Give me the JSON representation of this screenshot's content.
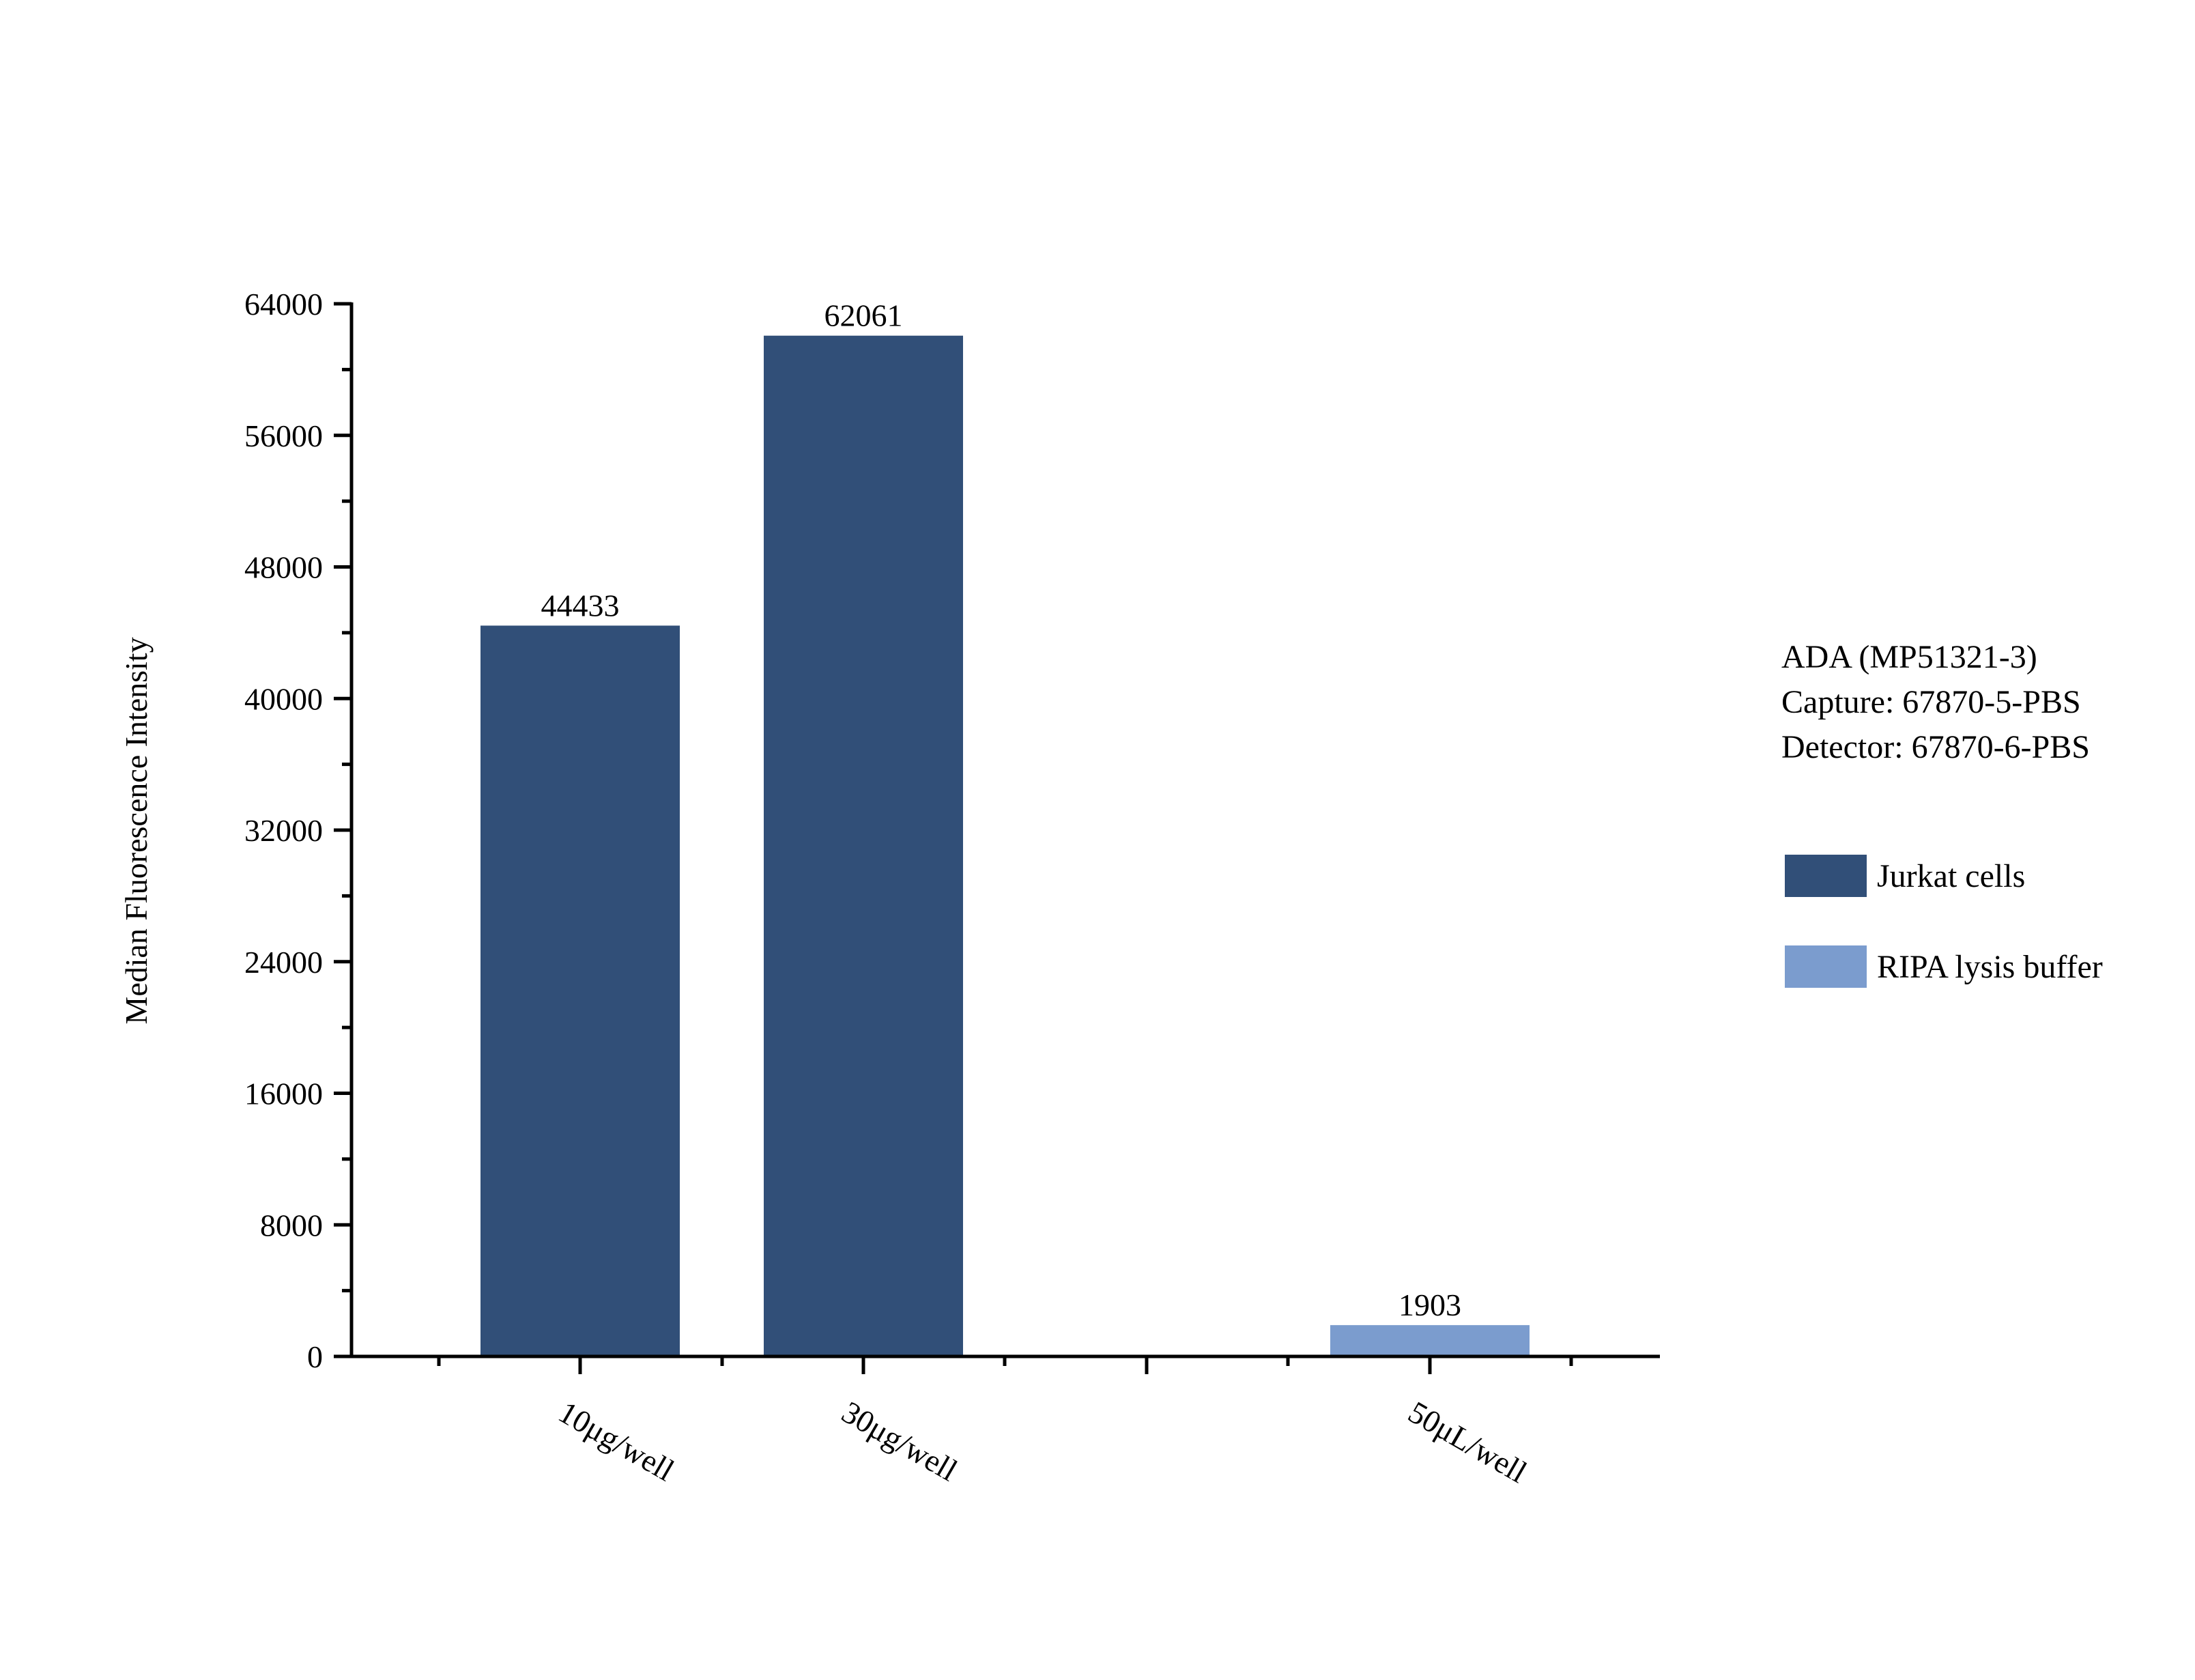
{
  "chart_data": {
    "type": "bar",
    "title": "",
    "xlabel": "",
    "ylabel": "Median Fluorescence Intensity",
    "ylim": [
      0,
      64000
    ],
    "yticks": [
      0,
      8000,
      16000,
      24000,
      32000,
      40000,
      48000,
      56000,
      64000
    ],
    "ytick_labels": [
      "0",
      "8000",
      "16000",
      "24000",
      "32000",
      "40000",
      "48000",
      "56000",
      "64000"
    ],
    "categories": [
      "10μg/well",
      "30μg/well",
      "50μL/well"
    ],
    "series": [
      {
        "name": "Jurkat cells",
        "color": "#314f78",
        "values": [
          44433,
          62061,
          null
        ]
      },
      {
        "name": "RIPA lysis buffer",
        "color": "#7b9cce",
        "values": [
          null,
          null,
          1903
        ]
      }
    ],
    "data_labels": [
      "44433",
      "62061",
      "1903"
    ],
    "annotation": [
      "ADA (MP51321-3)",
      "Capture: 67870-5-PBS",
      "Detector: 67870-6-PBS"
    ],
    "legend_position": "right",
    "grid": false
  }
}
